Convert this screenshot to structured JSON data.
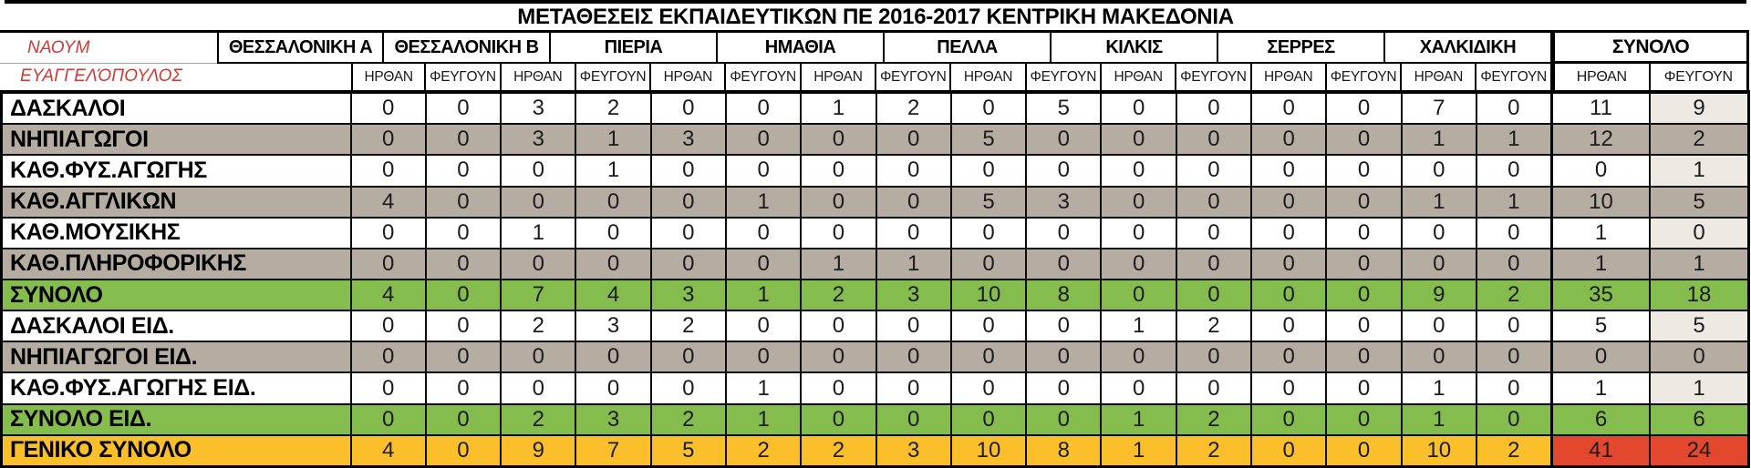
{
  "title": "ΜΕΤΑΘΕΣΕΙΣ ΕΚΠΑΙΔΕΥΤΙΚΩΝ ΠΕ 2016-2017 ΚΕΝΤΡΙΚΗ ΜΑΚΕΔΟΝΙΑ",
  "author": {
    "line1": "ΝΑΟΥΜ",
    "line2": "ΕΥΑΓΓΕΛΌΠΟΥΛΟΣ"
  },
  "columns": {
    "groups": [
      "ΘΕΣΣΑΛΟΝΙΚΗ Α",
      "ΘΕΣΣΑΛΟΝΙΚΗ Β",
      "ΠΙΕΡΙΑ",
      "ΗΜΑΘΙΑ",
      "ΠΕΛΛΑ",
      "ΚΙΛΚΙΣ",
      "ΣΕΡΡΕΣ",
      "ΧΑΛΚΙΔΙΚΗ"
    ],
    "total_group": "ΣΥΝΟΛΟ",
    "sub": [
      "ΗΡΘΑΝ",
      "ΦΕΥΓΟΥΝ"
    ]
  },
  "rows": [
    {
      "label": "ΔΑΣΚΑΛΟΙ",
      "style": "white",
      "values": [
        0,
        0,
        3,
        2,
        0,
        0,
        1,
        2,
        0,
        5,
        0,
        0,
        0,
        0,
        7,
        0,
        11,
        9
      ]
    },
    {
      "label": "ΝΗΠΙΑΓΩΓΟΙ",
      "style": "gray",
      "values": [
        0,
        0,
        3,
        1,
        3,
        0,
        0,
        0,
        5,
        0,
        0,
        0,
        0,
        0,
        1,
        1,
        12,
        2
      ]
    },
    {
      "label": "ΚΑΘ.ΦΥΣ.ΑΓΩΓΗΣ",
      "style": "white",
      "values": [
        0,
        0,
        0,
        1,
        0,
        0,
        0,
        0,
        0,
        0,
        0,
        0,
        0,
        0,
        0,
        0,
        0,
        1
      ]
    },
    {
      "label": "ΚΑΘ.ΑΓΓΛΙΚΩΝ",
      "style": "gray",
      "values": [
        4,
        0,
        0,
        0,
        0,
        1,
        0,
        0,
        5,
        3,
        0,
        0,
        0,
        0,
        1,
        1,
        10,
        5
      ]
    },
    {
      "label": "ΚΑΘ.ΜΟΥΣΙΚΗΣ",
      "style": "white",
      "values": [
        0,
        0,
        1,
        0,
        0,
        0,
        0,
        0,
        0,
        0,
        0,
        0,
        0,
        0,
        0,
        0,
        1,
        0
      ]
    },
    {
      "label": "ΚΑΘ.ΠΛΗΡΟΦΟΡΙΚΗΣ",
      "style": "gray",
      "values": [
        0,
        0,
        0,
        0,
        0,
        0,
        1,
        1,
        0,
        0,
        0,
        0,
        0,
        0,
        0,
        0,
        1,
        1
      ]
    },
    {
      "label": "ΣΥΝΟΛΟ",
      "style": "green",
      "values": [
        4,
        0,
        7,
        4,
        3,
        1,
        2,
        3,
        10,
        8,
        0,
        0,
        0,
        0,
        9,
        2,
        35,
        18
      ]
    },
    {
      "label": "ΔΑΣΚΑΛΟΙ ΕΙΔ.",
      "style": "white",
      "values": [
        0,
        0,
        2,
        3,
        2,
        0,
        0,
        0,
        0,
        0,
        1,
        2,
        0,
        0,
        0,
        0,
        5,
        5
      ]
    },
    {
      "label": "ΝΗΠΙΑΓΩΓΟΙ ΕΙΔ.",
      "style": "gray",
      "values": [
        0,
        0,
        0,
        0,
        0,
        0,
        0,
        0,
        0,
        0,
        0,
        0,
        0,
        0,
        0,
        0,
        0,
        0
      ]
    },
    {
      "label": "ΚΑΘ.ΦΥΣ.ΑΓΩΓΗΣ ΕΙΔ.",
      "style": "white",
      "values": [
        0,
        0,
        0,
        0,
        0,
        1,
        0,
        0,
        0,
        0,
        0,
        0,
        0,
        0,
        1,
        0,
        1,
        1
      ]
    },
    {
      "label": "ΣΥΝΟΛΟ ΕΙΔ.",
      "style": "green",
      "values": [
        0,
        0,
        2,
        3,
        2,
        1,
        0,
        0,
        0,
        0,
        1,
        2,
        0,
        0,
        1,
        0,
        6,
        6
      ]
    },
    {
      "label": "ΓΕΝΙΚΟ ΣΥΝΟΛΟ",
      "style": "orange",
      "values": [
        4,
        0,
        9,
        7,
        5,
        2,
        2,
        3,
        10,
        8,
        1,
        2,
        0,
        0,
        10,
        2,
        41,
        24
      ]
    }
  ],
  "colors": {
    "gray_row": "#b5aca2",
    "green_row": "#84bc4e",
    "orange_row": "#fbbf2c",
    "red_total_cell": "#e3482e",
    "beige_total_cell": "#EDE9E3",
    "author_text": "#cc3b35",
    "border": "#000000"
  }
}
